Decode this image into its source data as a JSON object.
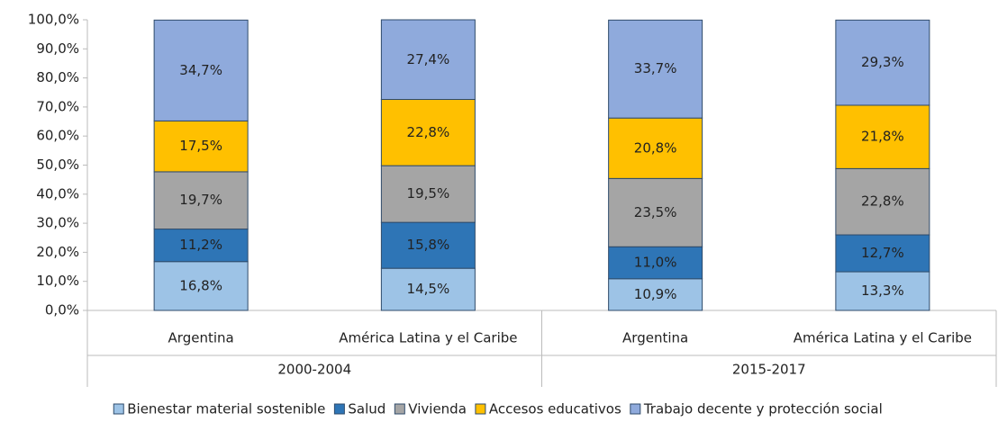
{
  "chart_data": {
    "type": "stacked_bar",
    "categories": [
      "Argentina",
      "América Latina y el Caribe",
      "Argentina",
      "América Latina y el Caribe"
    ],
    "groups": [
      {
        "name": "2000-2004",
        "size": 2
      },
      {
        "name": "2015-2017",
        "size": 2
      }
    ],
    "series": [
      {
        "name": "Bienestar material sostenible",
        "color": "#9dc3e6",
        "values": [
          16.8,
          14.5,
          10.9,
          13.3
        ],
        "value_labels": [
          "16,8%",
          "14,5%",
          "10,9%",
          "13,3%"
        ]
      },
      {
        "name": "Salud",
        "color": "#2e75b6",
        "values": [
          11.2,
          15.8,
          11.0,
          12.7
        ],
        "value_labels": [
          "11,2%",
          "15,8%",
          "11,0%",
          "12,7%"
        ]
      },
      {
        "name": "Vivienda",
        "color": "#a5a5a5",
        "values": [
          19.7,
          19.5,
          23.5,
          22.8
        ],
        "value_labels": [
          "19,7%",
          "19,5%",
          "23,5%",
          "22,8%"
        ]
      },
      {
        "name": "Accesos educativos",
        "color": "#ffc000",
        "values": [
          17.5,
          22.8,
          20.8,
          21.8
        ],
        "value_labels": [
          "17,5%",
          "22,8%",
          "20,8%",
          "21,8%"
        ]
      },
      {
        "name": "Trabajo decente y protección social",
        "color": "#8faadc",
        "values": [
          34.7,
          27.4,
          33.7,
          29.3
        ],
        "value_labels": [
          "34,7%",
          "27,4%",
          "33,7%",
          "29,3%"
        ]
      }
    ],
    "ylim": [
      0,
      100
    ],
    "yticks": [
      {
        "value": 0,
        "label": "0,0%"
      },
      {
        "value": 10,
        "label": "10,0%"
      },
      {
        "value": 20,
        "label": "20,0%"
      },
      {
        "value": 30,
        "label": "30,0%"
      },
      {
        "value": 40,
        "label": "40,0%"
      },
      {
        "value": 50,
        "label": "50,0%"
      },
      {
        "value": 60,
        "label": "60,0%"
      },
      {
        "value": 70,
        "label": "70,0%"
      },
      {
        "value": 80,
        "label": "80,0%"
      },
      {
        "value": 90,
        "label": "90,0%"
      },
      {
        "value": 100,
        "label": "100,0%"
      }
    ],
    "legend": "bottom"
  }
}
